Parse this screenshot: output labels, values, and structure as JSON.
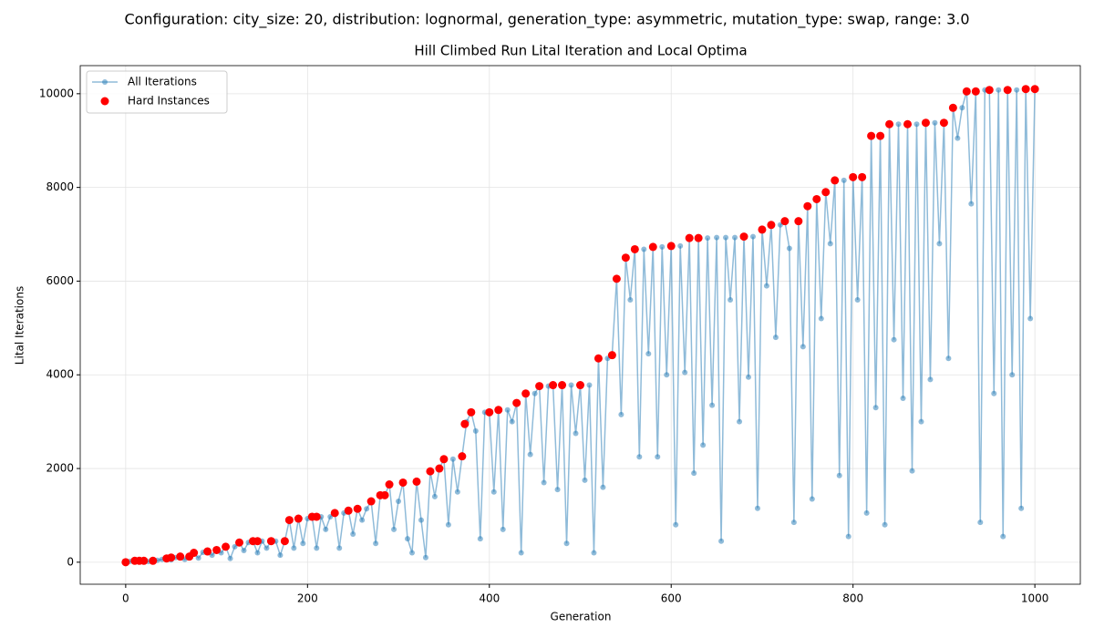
{
  "chart_data": {
    "type": "line",
    "suptitle": "Configuration: city_size: 20, distribution: lognormal, generation_type: asymmetric, mutation_type: swap, range: 3.0",
    "title": "Hill Climbed Run Lital Iteration and Local Optima",
    "x_label": "Generation",
    "y_label": "Lital Iterations",
    "xlim": [
      -50,
      1050
    ],
    "ylim": [
      -470,
      10600
    ],
    "xticks": [
      0,
      200,
      400,
      600,
      800,
      1000
    ],
    "yticks": [
      0,
      2000,
      4000,
      6000,
      8000,
      10000
    ],
    "grid": true,
    "legend": "upper left",
    "series": [
      {
        "name": "All Iterations",
        "color": "#1f77b4",
        "style": "line",
        "x": [
          0,
          5,
          10,
          15,
          20,
          25,
          30,
          35,
          40,
          45,
          50,
          55,
          60,
          65,
          70,
          75,
          80,
          85,
          90,
          95,
          100,
          105,
          110,
          115,
          120,
          125,
          130,
          135,
          140,
          145,
          150,
          155,
          160,
          165,
          170,
          175,
          180,
          185,
          190,
          195,
          200,
          205,
          210,
          215,
          220,
          225,
          230,
          235,
          240,
          245,
          250,
          255,
          260,
          265,
          270,
          275,
          280,
          285,
          290,
          295,
          300,
          305,
          310,
          315,
          320,
          325,
          330,
          335,
          340,
          345,
          350,
          355,
          360,
          365,
          370,
          375,
          380,
          385,
          390,
          395,
          400,
          405,
          410,
          415,
          420,
          425,
          430,
          435,
          440,
          445,
          450,
          455,
          460,
          465,
          470,
          475,
          480,
          485,
          490,
          495,
          500,
          505,
          510,
          515,
          520,
          525,
          530,
          535,
          540,
          545,
          550,
          555,
          560,
          565,
          570,
          575,
          580,
          585,
          590,
          595,
          600,
          605,
          610,
          615,
          620,
          625,
          630,
          635,
          640,
          645,
          650,
          655,
          660,
          665,
          670,
          675,
          680,
          685,
          690,
          695,
          700,
          705,
          710,
          715,
          720,
          725,
          730,
          735,
          740,
          745,
          750,
          755,
          760,
          765,
          770,
          775,
          780,
          785,
          790,
          795,
          800,
          805,
          810,
          815,
          820,
          825,
          830,
          835,
          840,
          845,
          850,
          855,
          860,
          865,
          870,
          875,
          880,
          885,
          890,
          895,
          900,
          905,
          910,
          915,
          920,
          925,
          930,
          935,
          940,
          945,
          950,
          955,
          960,
          965,
          970,
          975,
          980,
          985,
          990,
          995,
          1000
        ],
        "values": [
          0,
          20,
          30,
          30,
          30,
          15,
          30,
          40,
          60,
          80,
          50,
          100,
          120,
          60,
          120,
          200,
          90,
          210,
          230,
          150,
          260,
          200,
          330,
          80,
          330,
          420,
          250,
          420,
          450,
          200,
          450,
          300,
          450,
          450,
          150,
          450,
          900,
          300,
          930,
          400,
          930,
          970,
          300,
          970,
          700,
          970,
          1050,
          300,
          1050,
          1100,
          600,
          1140,
          900,
          1140,
          1300,
          400,
          1430,
          1430,
          1660,
          700,
          1300,
          1700,
          500,
          200,
          1720,
          900,
          100,
          1940,
          1400,
          2000,
          2200,
          800,
          2200,
          1500,
          2260,
          3000,
          3200,
          2800,
          500,
          3200,
          3200,
          1500,
          3250,
          700,
          3250,
          3000,
          3400,
          200,
          3600,
          2300,
          3600,
          3760,
          1700,
          3760,
          3780,
          1550,
          3780,
          400,
          3780,
          2750,
          3780,
          1750,
          3780,
          200,
          4350,
          1600,
          4350,
          4420,
          6050,
          3150,
          6500,
          5600,
          6680,
          2250,
          6680,
          4450,
          6730,
          2250,
          6730,
          4000,
          6750,
          800,
          6750,
          4050,
          6920,
          1900,
          6920,
          2500,
          6920,
          3350,
          6930,
          450,
          6930,
          5600,
          6930,
          3000,
          6950,
          3950,
          6950,
          1150,
          7100,
          5900,
          7200,
          4800,
          7200,
          7280,
          6700,
          850,
          7280,
          4600,
          7600,
          1350,
          7750,
          5200,
          7900,
          6800,
          8150,
          1850,
          8150,
          550,
          8220,
          5600,
          8220,
          1050,
          9100,
          3300,
          9100,
          800,
          9350,
          4750,
          9350,
          3500,
          9350,
          1950,
          9350,
          3000,
          9380,
          3900,
          9380,
          6800,
          9380,
          4350,
          9700,
          9050,
          9700,
          10050,
          7650,
          10050,
          850,
          10080,
          10080,
          3600,
          10080,
          550,
          10080,
          4000,
          10080,
          1150,
          10100,
          5200,
          10100
        ]
      },
      {
        "name": "Hard Instances",
        "color": "#ff0000",
        "style": "scatter",
        "x": [
          0,
          10,
          15,
          20,
          30,
          45,
          50,
          60,
          70,
          75,
          90,
          100,
          110,
          125,
          140,
          145,
          160,
          175,
          180,
          190,
          205,
          210,
          230,
          245,
          255,
          270,
          280,
          285,
          290,
          305,
          320,
          335,
          345,
          350,
          370,
          373,
          380,
          400,
          410,
          430,
          440,
          455,
          470,
          480,
          500,
          520,
          535,
          540,
          550,
          560,
          580,
          600,
          620,
          630,
          680,
          700,
          710,
          725,
          740,
          750,
          760,
          770,
          780,
          800,
          810,
          820,
          830,
          840,
          860,
          880,
          900,
          910,
          925,
          935,
          950,
          970,
          990,
          1000
        ],
        "values": [
          0,
          30,
          30,
          30,
          30,
          80,
          100,
          120,
          120,
          200,
          230,
          260,
          330,
          420,
          450,
          450,
          450,
          450,
          900,
          930,
          970,
          970,
          1050,
          1100,
          1140,
          1300,
          1430,
          1430,
          1660,
          1700,
          1720,
          1940,
          2000,
          2200,
          2260,
          2950,
          3200,
          3200,
          3250,
          3400,
          3600,
          3760,
          3780,
          3780,
          3780,
          4350,
          4420,
          6050,
          6500,
          6680,
          6730,
          6750,
          6920,
          6920,
          6950,
          7100,
          7200,
          7280,
          7280,
          7600,
          7750,
          7900,
          8150,
          8220,
          8220,
          9100,
          9100,
          9350,
          9350,
          9380,
          9380,
          9700,
          10050,
          10050,
          10080,
          10080,
          10100,
          10100
        ]
      }
    ]
  }
}
